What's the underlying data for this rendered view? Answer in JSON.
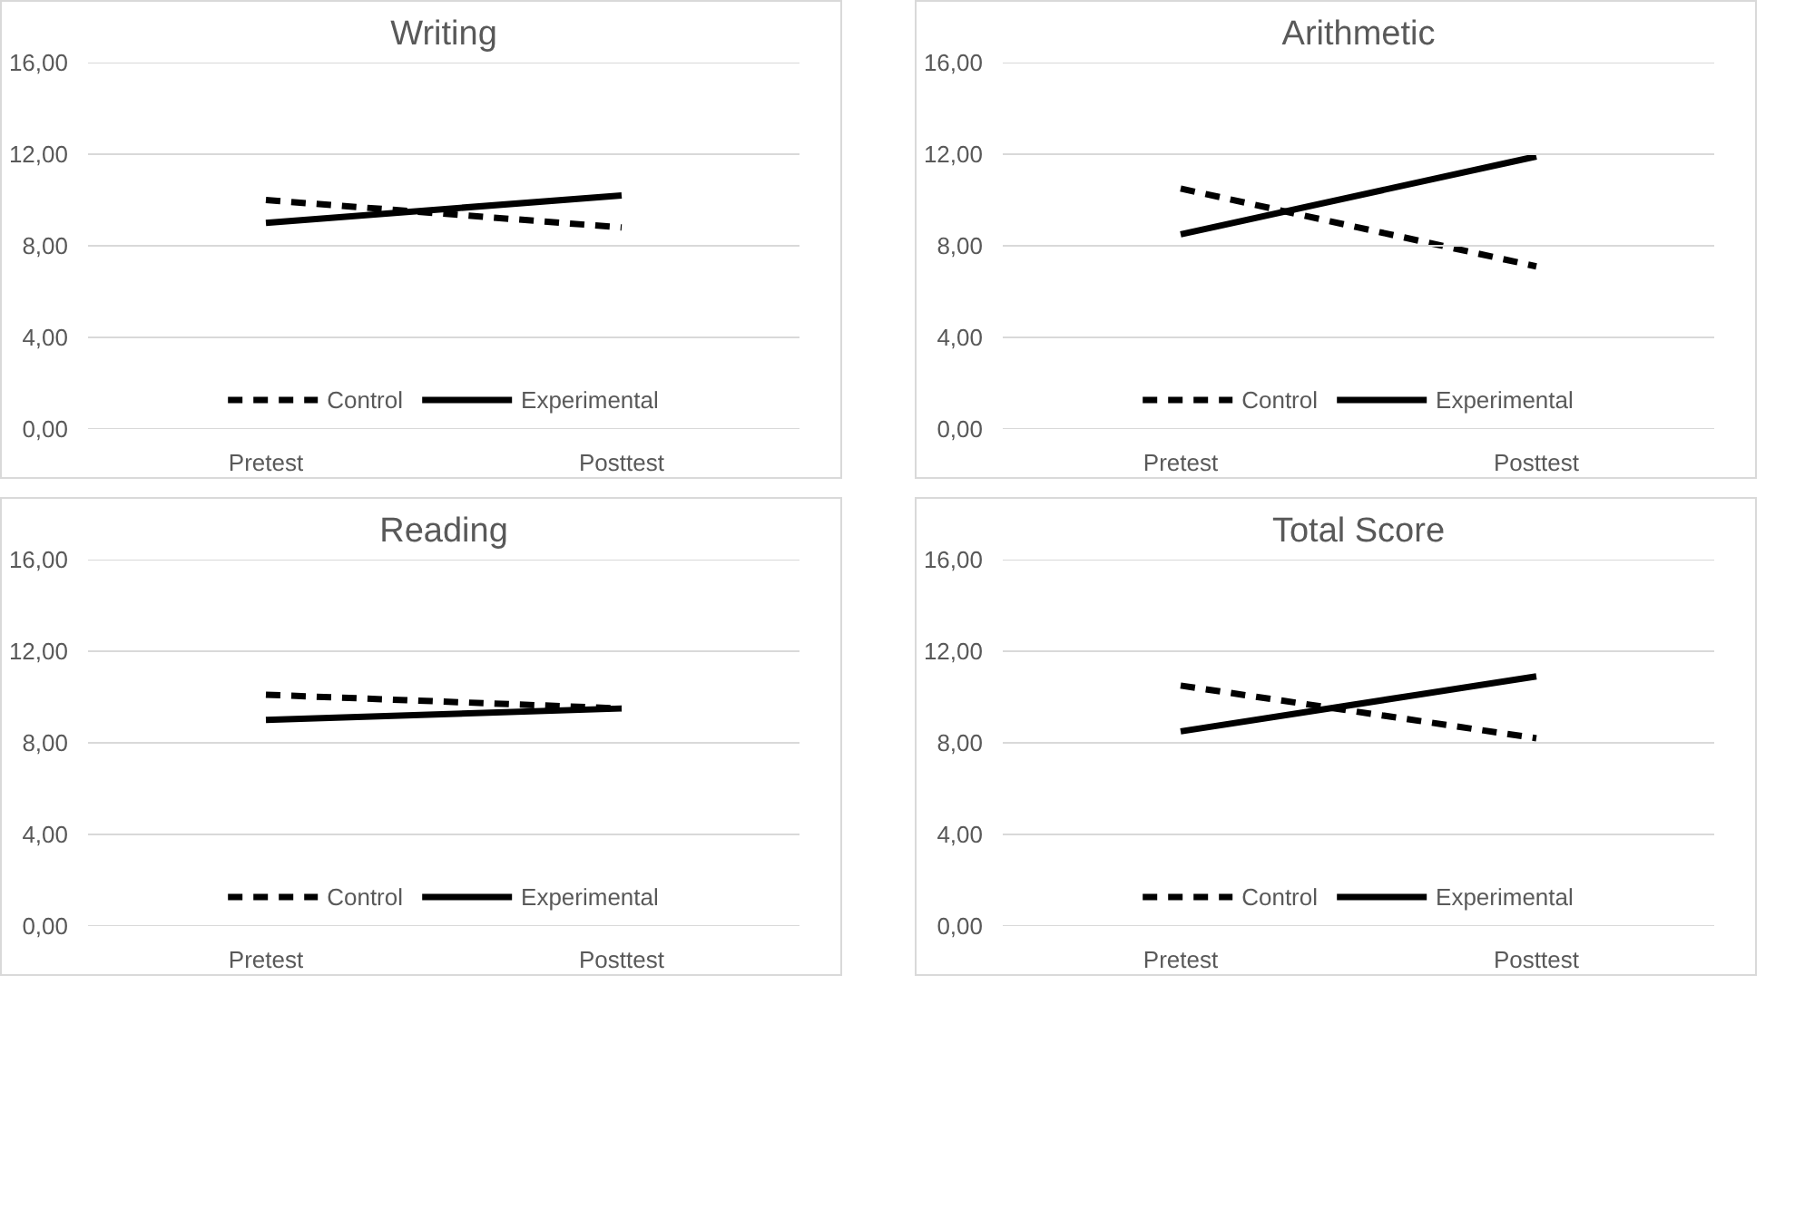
{
  "chart_data": [
    {
      "type": "line",
      "title": "Writing",
      "categories": [
        "Pretest",
        "Posttest"
      ],
      "ylim": [
        0,
        16
      ],
      "yticks": [
        {
          "value": 0,
          "label": "0,00"
        },
        {
          "value": 4,
          "label": "4,00"
        },
        {
          "value": 8,
          "label": "8,00"
        },
        {
          "value": 12,
          "label": "12,00"
        },
        {
          "value": 16,
          "label": "16,00"
        }
      ],
      "grid": "y",
      "legend": "bottom",
      "series": [
        {
          "name": "Control",
          "color": "#000000",
          "line_style": "dashed",
          "values": [
            10.0,
            8.8
          ]
        },
        {
          "name": "Experimental",
          "color": "#000000",
          "line_style": "solid",
          "values": [
            9.0,
            10.2
          ]
        }
      ]
    },
    {
      "type": "line",
      "title": "Arithmetic",
      "categories": [
        "Pretest",
        "Posttest"
      ],
      "ylim": [
        0,
        16
      ],
      "yticks": [
        {
          "value": 0,
          "label": "0,00"
        },
        {
          "value": 4,
          "label": "4,00"
        },
        {
          "value": 8,
          "label": "8,00"
        },
        {
          "value": 12,
          "label": "12,00"
        },
        {
          "value": 16,
          "label": "16,00"
        }
      ],
      "grid": "y",
      "legend": "bottom",
      "series": [
        {
          "name": "Control",
          "color": "#000000",
          "line_style": "dashed",
          "values": [
            10.5,
            7.1
          ]
        },
        {
          "name": "Experimental",
          "color": "#000000",
          "line_style": "solid",
          "values": [
            8.5,
            11.9
          ]
        }
      ]
    },
    {
      "type": "line",
      "title": "Reading",
      "categories": [
        "Pretest",
        "Posttest"
      ],
      "ylim": [
        0,
        16
      ],
      "yticks": [
        {
          "value": 0,
          "label": "0,00"
        },
        {
          "value": 4,
          "label": "4,00"
        },
        {
          "value": 8,
          "label": "8,00"
        },
        {
          "value": 12,
          "label": "12,00"
        },
        {
          "value": 16,
          "label": "16,00"
        }
      ],
      "grid": "y",
      "legend": "bottom",
      "series": [
        {
          "name": "Control",
          "color": "#000000",
          "line_style": "dashed",
          "values": [
            10.1,
            9.5
          ]
        },
        {
          "name": "Experimental",
          "color": "#000000",
          "line_style": "solid",
          "values": [
            9.0,
            9.5
          ]
        }
      ]
    },
    {
      "type": "line",
      "title": "Total Score",
      "categories": [
        "Pretest",
        "Posttest"
      ],
      "ylim": [
        0,
        16
      ],
      "yticks": [
        {
          "value": 0,
          "label": "0,00"
        },
        {
          "value": 4,
          "label": "4,00"
        },
        {
          "value": 8,
          "label": "8,00"
        },
        {
          "value": 12,
          "label": "12,00"
        },
        {
          "value": 16,
          "label": "16,00"
        }
      ],
      "grid": "y",
      "legend": "bottom",
      "series": [
        {
          "name": "Control",
          "color": "#000000",
          "line_style": "dashed",
          "values": [
            10.5,
            8.2
          ]
        },
        {
          "name": "Experimental",
          "color": "#000000",
          "line_style": "solid",
          "values": [
            8.5,
            10.9
          ]
        }
      ]
    }
  ]
}
